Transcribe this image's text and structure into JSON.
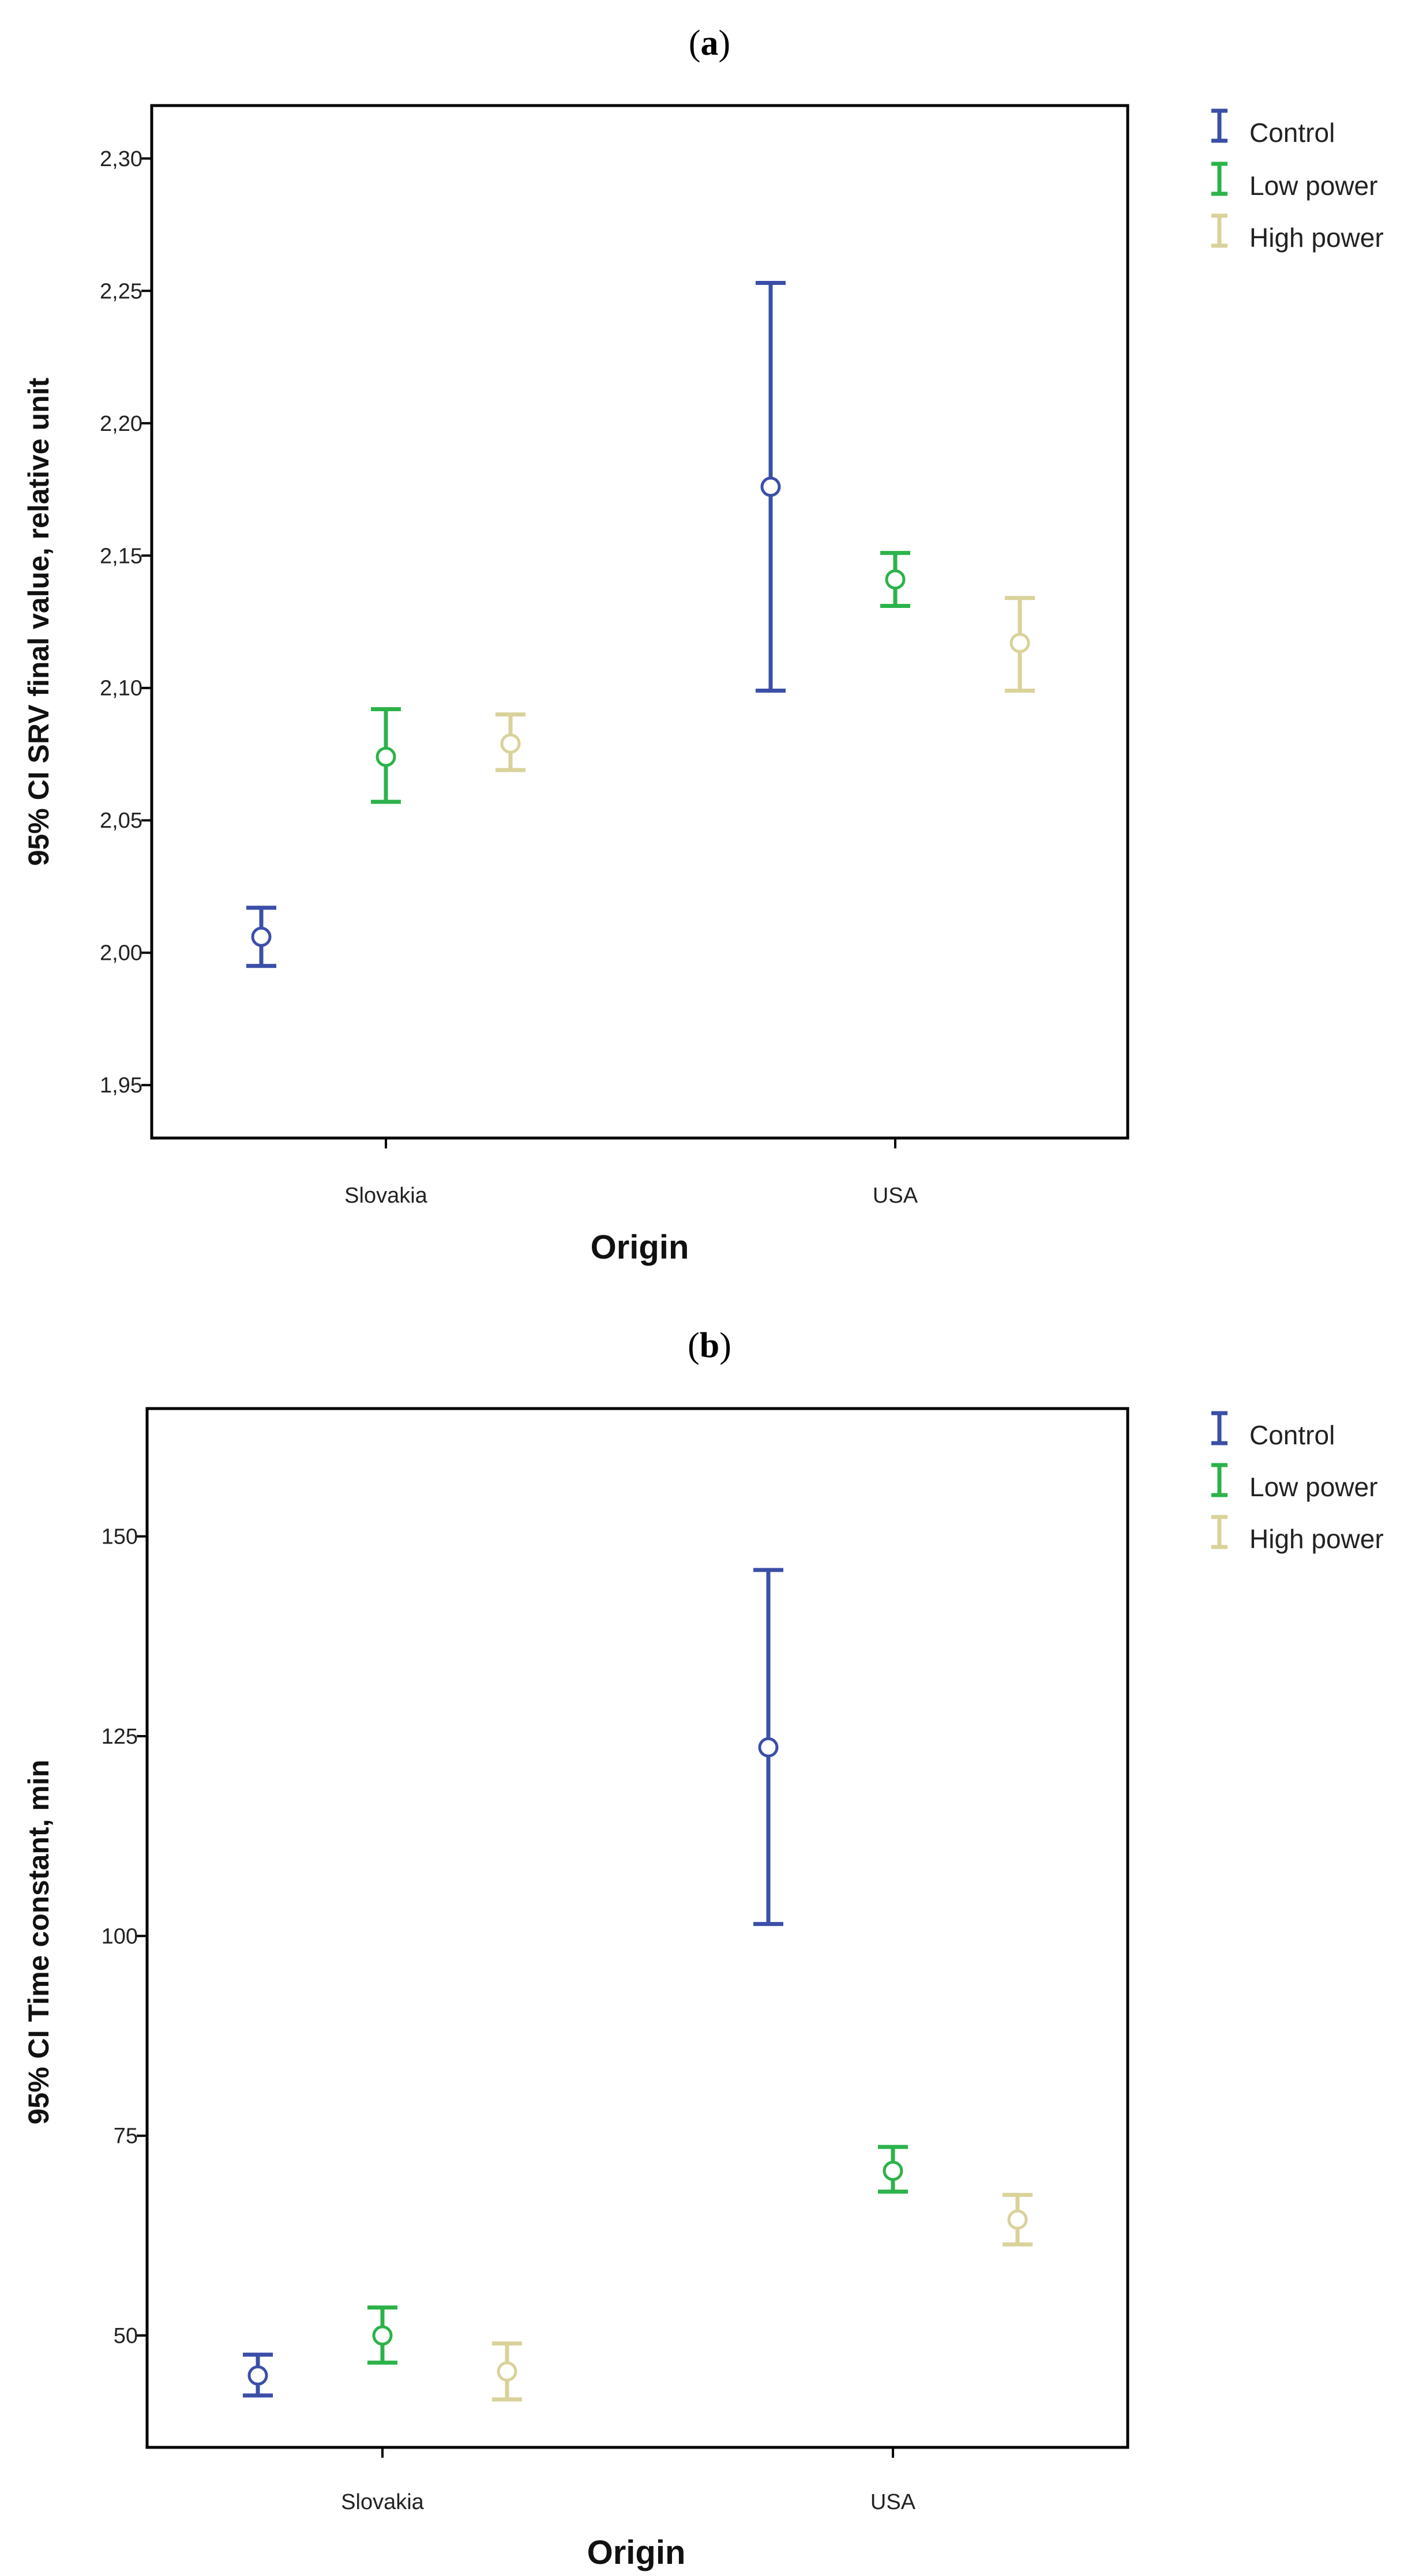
{
  "figure": {
    "panel_a_label": {
      "open": "(",
      "letter": "a",
      "close": ")"
    },
    "panel_b_label": {
      "open": "(",
      "letter": "b",
      "close": ")"
    }
  },
  "colors": {
    "Control": "#3b4fa8",
    "Low power": "#2bb34a",
    "High power": "#d9d29a"
  },
  "chart_data": [
    {
      "type": "errorbar",
      "title": "(a)",
      "xlabel": "Origin",
      "ylabel": "95% CI SRV final value, relative unit",
      "categories": [
        "Slovakia",
        "USA"
      ],
      "ylim": [
        1.93,
        2.32
      ],
      "yticks": [
        1.95,
        2.0,
        2.05,
        2.1,
        2.15,
        2.2,
        2.25,
        2.3
      ],
      "ytick_labels": [
        "1,95",
        "2,00",
        "2,05",
        "2,10",
        "2,15",
        "2,20",
        "2,25",
        "2,30"
      ],
      "legend": [
        "Control",
        "Low power",
        "High power"
      ],
      "series": [
        {
          "name": "Control",
          "mean": [
            2.006,
            2.176
          ],
          "lower": [
            1.995,
            2.099
          ],
          "upper": [
            2.017,
            2.253
          ]
        },
        {
          "name": "Low power",
          "mean": [
            2.074,
            2.141
          ],
          "lower": [
            2.057,
            2.131
          ],
          "upper": [
            2.092,
            2.151
          ]
        },
        {
          "name": "High power",
          "mean": [
            2.079,
            2.117
          ],
          "lower": [
            2.069,
            2.099
          ],
          "upper": [
            2.09,
            2.134
          ]
        }
      ]
    },
    {
      "type": "errorbar",
      "title": "(b)",
      "xlabel": "Origin",
      "ylabel": "95% CI Time constant, min",
      "categories": [
        "Slovakia",
        "USA"
      ],
      "ylim": [
        36,
        166
      ],
      "yticks": [
        50,
        75,
        100,
        125,
        150
      ],
      "ytick_labels": [
        "50",
        "75",
        "100",
        "125",
        "150"
      ],
      "legend": [
        "Control",
        "Low power",
        "High power"
      ],
      "series": [
        {
          "name": "Control",
          "mean": [
            45.0,
            123.6
          ],
          "lower": [
            42.5,
            101.5
          ],
          "upper": [
            47.6,
            145.8
          ]
        },
        {
          "name": "Low power",
          "mean": [
            50.0,
            70.6
          ],
          "lower": [
            46.6,
            68.0
          ],
          "upper": [
            53.5,
            73.6
          ]
        },
        {
          "name": "High power",
          "mean": [
            45.5,
            64.5
          ],
          "lower": [
            42.0,
            61.4
          ],
          "upper": [
            49.0,
            67.6
          ]
        }
      ]
    }
  ]
}
